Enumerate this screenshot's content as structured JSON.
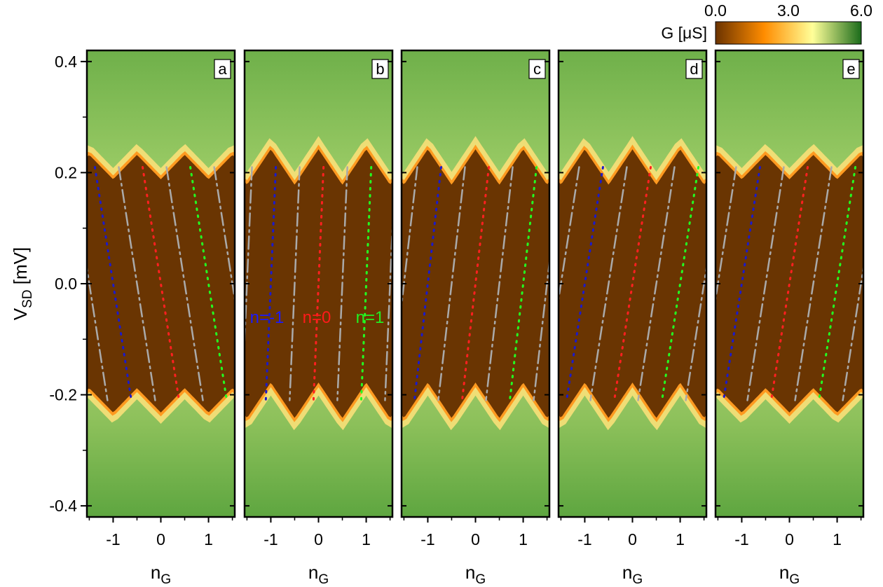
{
  "chart_data": {
    "type": "heatmap",
    "colorbar": {
      "title": "G [μS]",
      "ticks": [
        "0.0",
        "3.0",
        "6.0"
      ],
      "range": [
        0,
        6
      ],
      "colors": [
        "#6b3300",
        "#ff8c00",
        "#ffff99",
        "#1a6b1a"
      ]
    },
    "y_axis": {
      "label": "V",
      "label_sub": "SD",
      "label_unit": " [mV]",
      "range": [
        -0.42,
        0.42
      ],
      "ticks": [
        0.4,
        0.2,
        0.0,
        -0.2,
        -0.4
      ],
      "tick_labels": [
        "0.4",
        "0.2",
        "0.0",
        "-0.2",
        "-0.4"
      ]
    },
    "x_axis": {
      "label": "n",
      "label_sub": "G",
      "range": [
        -1.55,
        1.55
      ],
      "ticks": [
        -1,
        0,
        1
      ],
      "tick_labels": [
        "-1",
        "0",
        "1"
      ]
    },
    "gap_half_width_mV": 0.21,
    "panels": [
      {
        "letter": "a",
        "slope": -0.55,
        "mod": 0.022,
        "cusp": "up"
      },
      {
        "letter": "b",
        "slope": 2.0,
        "mod": 0.032,
        "cusp": "down"
      },
      {
        "letter": "c",
        "slope": 0.75,
        "mod": 0.032,
        "cusp": "down"
      },
      {
        "letter": "d",
        "slope": 0.55,
        "mod": 0.032,
        "cusp": "down"
      },
      {
        "letter": "e",
        "slope": 0.55,
        "mod": 0.022,
        "cusp": "up"
      }
    ],
    "state_labels": [
      {
        "text": "n=-1",
        "color": "#1a1aff"
      },
      {
        "text": "n=0",
        "color": "#ff1a1a"
      },
      {
        "text": "n=1",
        "color": "#22ee22"
      }
    ],
    "line_colors": {
      "n=-1": "#1a1acc",
      "n=0": "#ff2020",
      "n=1": "#22ff22",
      "guide": "#aaaaaa"
    }
  }
}
